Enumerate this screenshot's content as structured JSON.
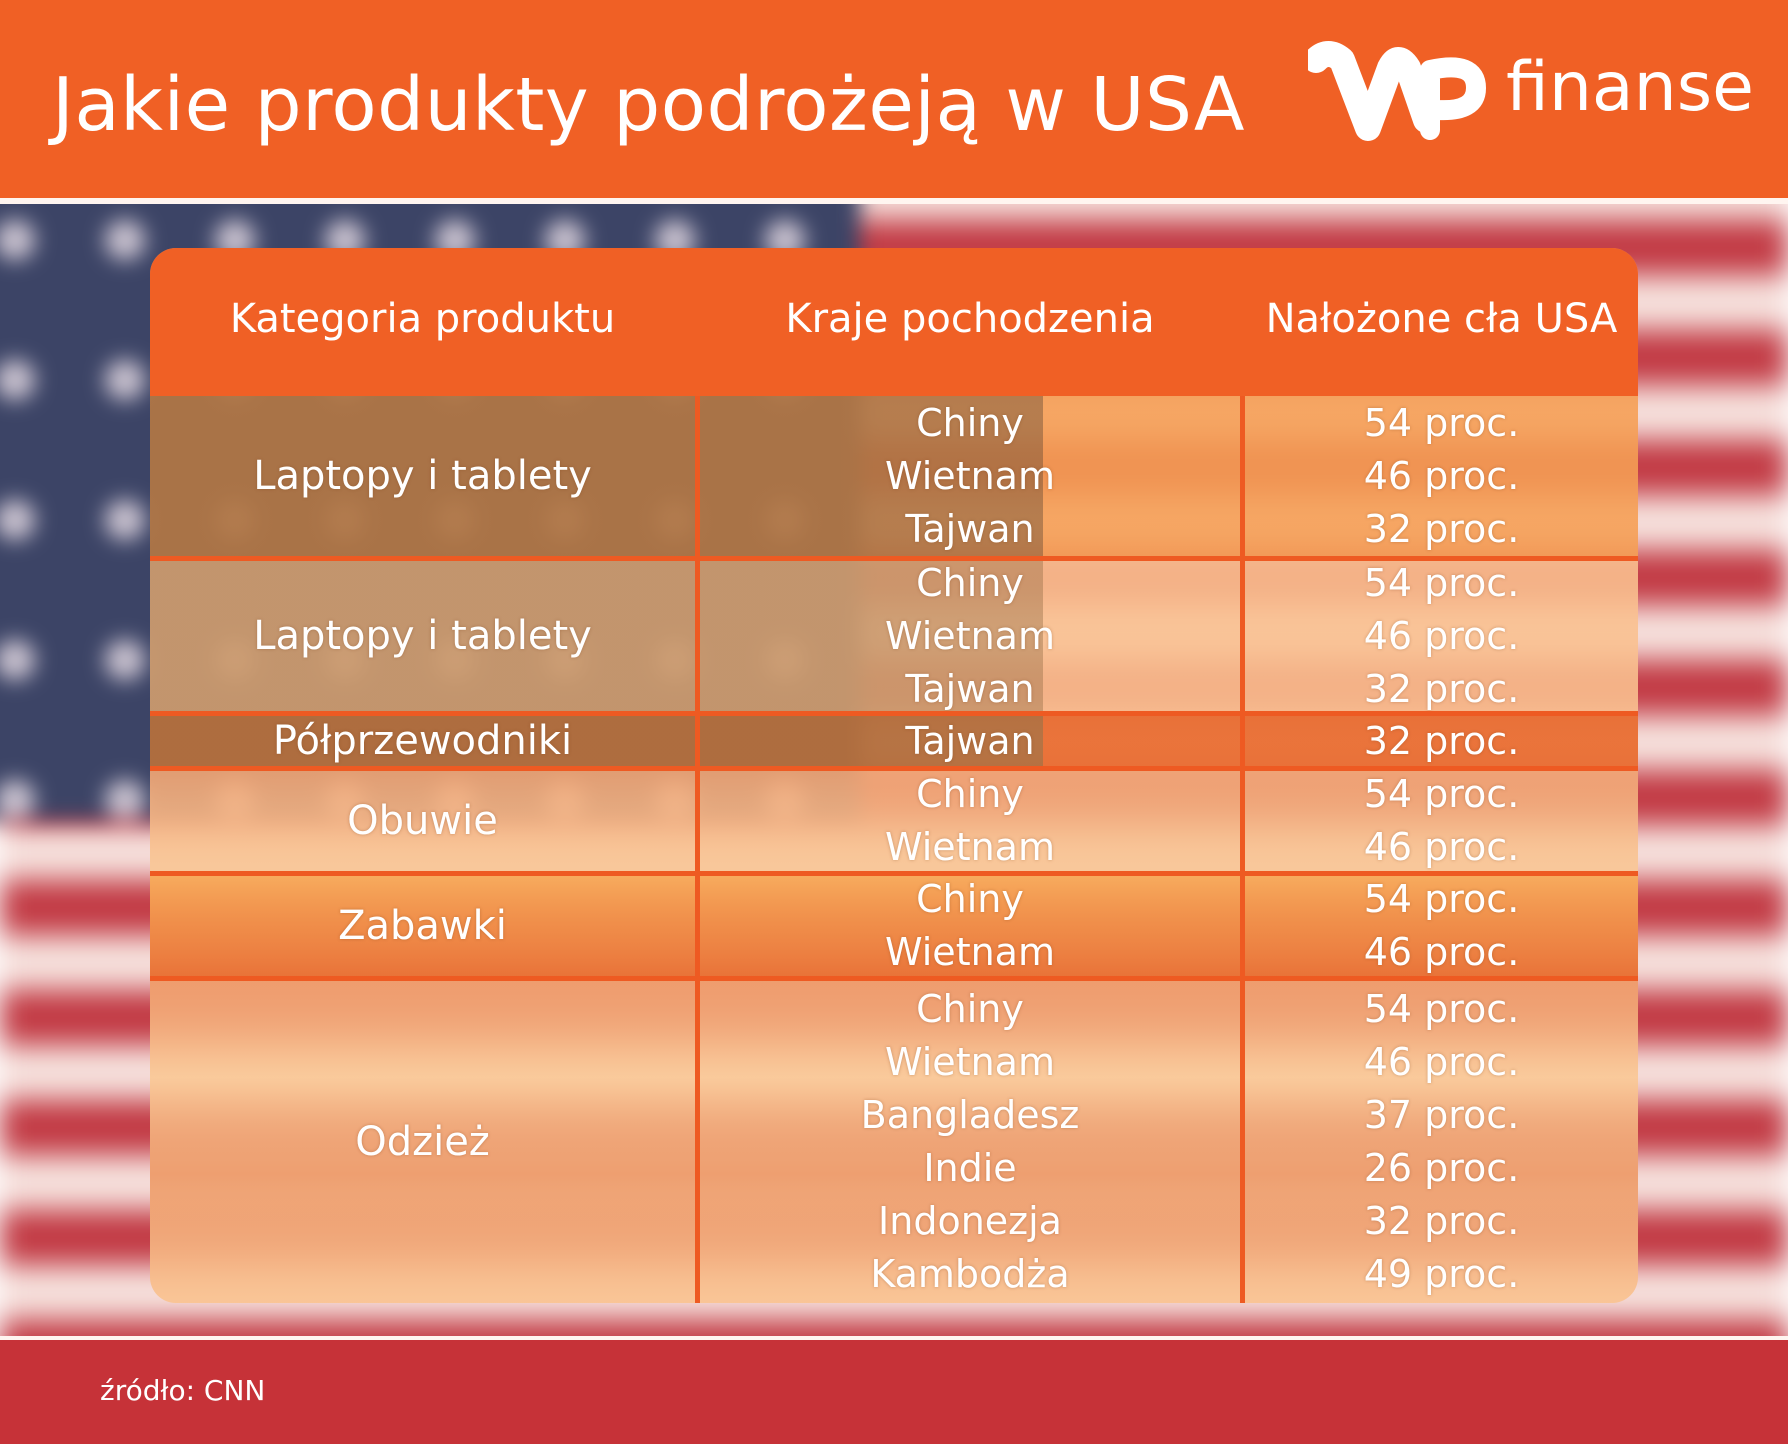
{
  "header": {
    "title": "Jakie produkty podrożeją w USA",
    "logo_text": "finanse",
    "logo_mark": "WP"
  },
  "colors": {
    "accent": "#f06025",
    "flag_red": "#c23a44",
    "flag_blue": "#3c4466"
  },
  "table": {
    "headers": [
      "Kategoria produktu",
      "Kraje pochodzenia",
      "Nałożone cła USA"
    ],
    "rows": [
      {
        "category": "Laptopy i tablety",
        "countries": [
          "Chiny",
          "Wietnam",
          "Tajwan"
        ],
        "tariffs": [
          "54 proc.",
          "46 proc.",
          "32 proc."
        ]
      },
      {
        "category": "Laptopy i tablety",
        "countries": [
          "Chiny",
          "Wietnam",
          "Tajwan"
        ],
        "tariffs": [
          "54 proc.",
          "46 proc.",
          "32 proc."
        ]
      },
      {
        "category": "Półprzewodniki",
        "countries": [
          "Tajwan"
        ],
        "tariffs": [
          "32 proc."
        ]
      },
      {
        "category": "Obuwie",
        "countries": [
          "Chiny",
          "Wietnam"
        ],
        "tariffs": [
          "54 proc.",
          "46 proc."
        ]
      },
      {
        "category": "Zabawki",
        "countries": [
          "Chiny",
          "Wietnam"
        ],
        "tariffs": [
          "54 proc.",
          "46 proc."
        ]
      },
      {
        "category": "Odzież",
        "countries": [
          "Chiny",
          "Wietnam",
          "Bangladesz",
          "Indie",
          "Indonezja",
          "Kambodża"
        ],
        "tariffs": [
          "54 proc.",
          "46 proc.",
          "37 proc.",
          "26 proc.",
          "32 proc.",
          "49 proc."
        ]
      }
    ]
  },
  "footer": {
    "source": "źródło: CNN"
  }
}
